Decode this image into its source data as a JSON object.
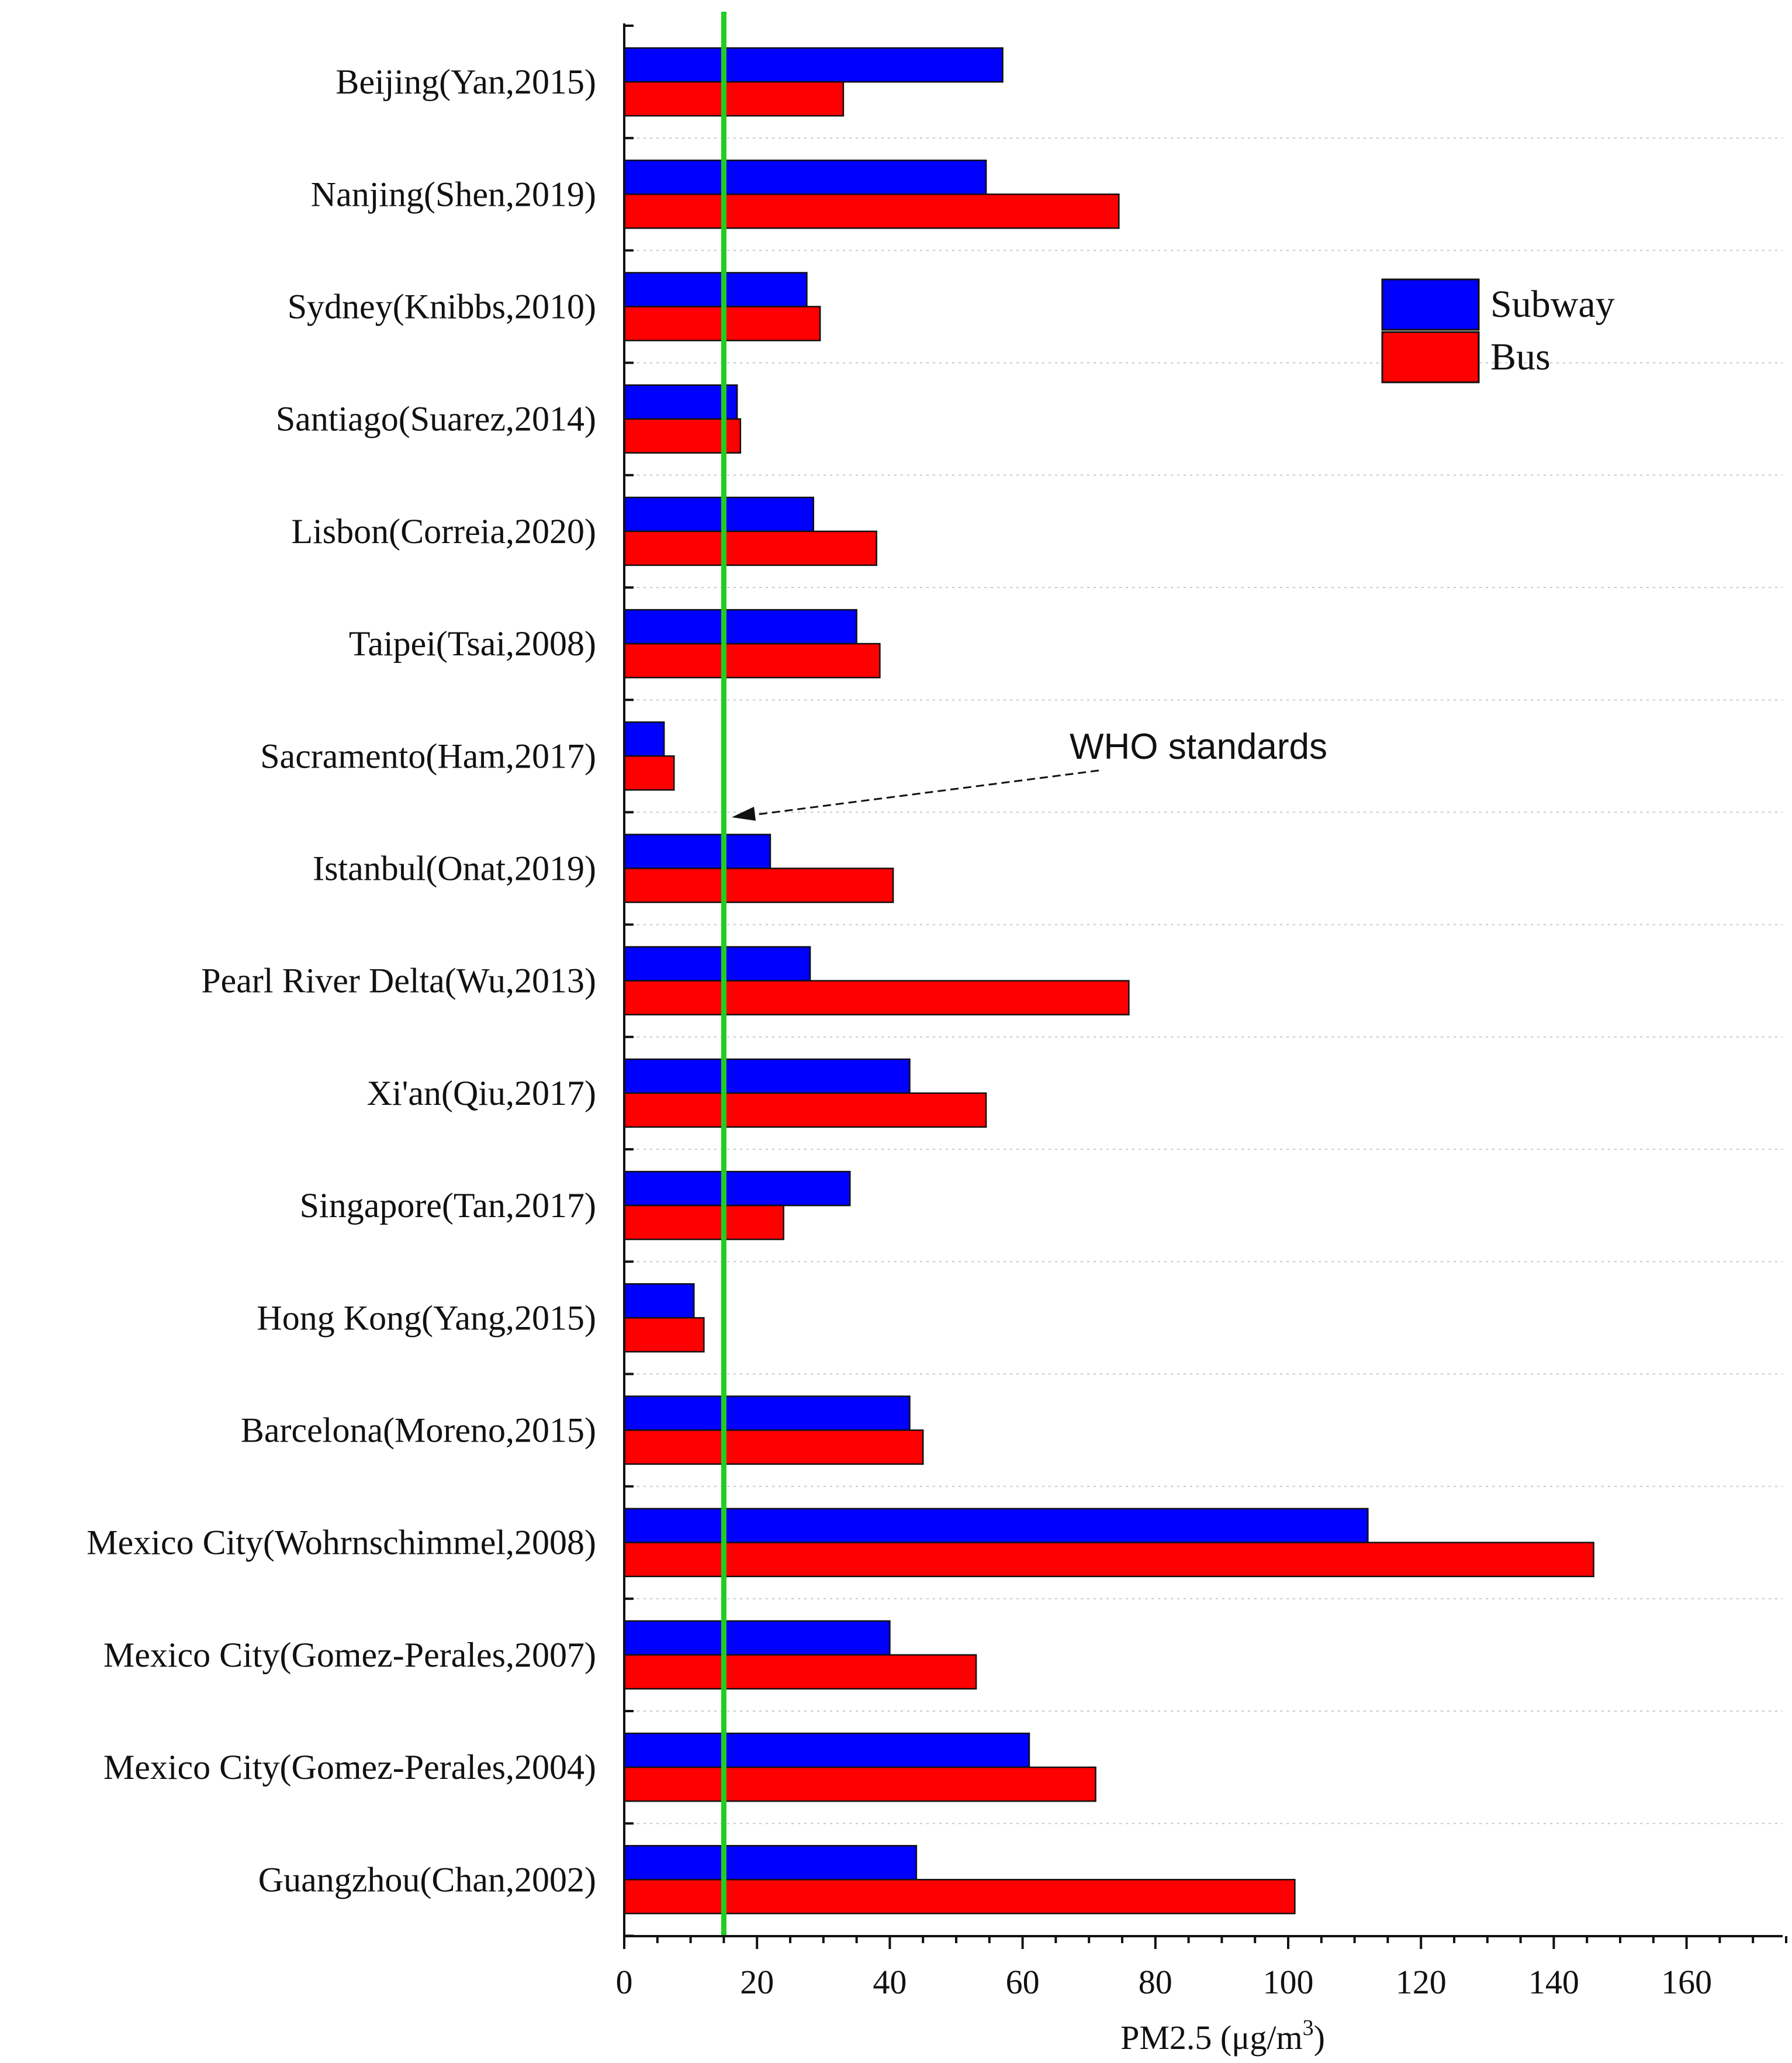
{
  "chart_data": {
    "type": "bar",
    "orientation": "horizontal",
    "categories": [
      "Beijing(Yan,2015)",
      "Nanjing(Shen,2019)",
      "Sydney(Knibbs,2010)",
      "Santiago(Suarez,2014)",
      "Lisbon(Correia,2020)",
      "Taipei(Tsai,2008)",
      "Sacramento(Ham,2017)",
      "Istanbul(Onat,2019)",
      "Pearl River Delta(Wu,2013)",
      "Xi'an(Qiu,2017)",
      "Singapore(Tan,2017)",
      "Hong Kong(Yang,2015)",
      "Barcelona(Moreno,2015)",
      "Mexico City(Wohrnschimmel,2008)",
      "Mexico City(Gomez-Perales,2007)",
      "Mexico City(Gomez-Perales,2004)",
      "Guangzhou(Chan,2002)"
    ],
    "series": [
      {
        "name": "Subway",
        "color": "#0000ff",
        "values": [
          57,
          54.5,
          27.5,
          17,
          28.5,
          35,
          6,
          22,
          28,
          43,
          34,
          10.5,
          43,
          112,
          40,
          61,
          44
        ]
      },
      {
        "name": "Bus",
        "color": "#ff0000",
        "values": [
          33,
          74.5,
          29.5,
          17.5,
          38,
          38.5,
          7.5,
          40.5,
          76,
          54.5,
          24,
          12,
          45,
          146,
          53,
          71,
          101
        ]
      }
    ],
    "x_ticks": [
      "0",
      "20",
      "40",
      "60",
      "80",
      "100",
      "120",
      "140",
      "160"
    ],
    "xlim": [
      0,
      175
    ],
    "xlabel": "PM2.5 (μg/m",
    "xlabel_sup": "3",
    "xlabel_close": ")",
    "reference_line": {
      "value": 15,
      "label": "WHO standards",
      "color": "#22cc22"
    },
    "legend": {
      "position": "top-right",
      "entries": [
        "Subway",
        "Bus"
      ]
    },
    "grid": "horizontal dotted"
  }
}
